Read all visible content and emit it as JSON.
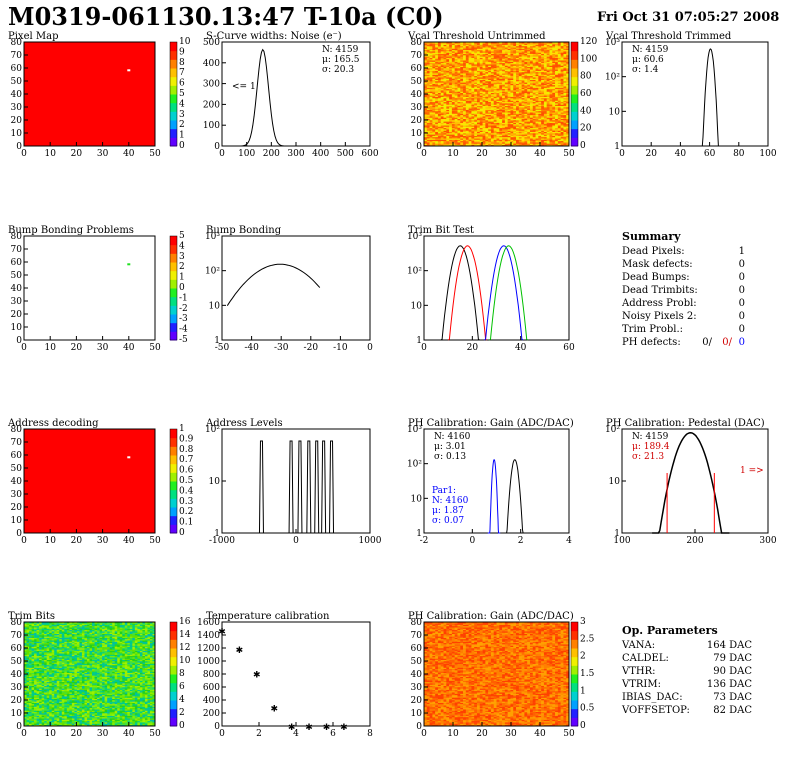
{
  "header": {
    "title": "M0319-061130.13:47 T-10a (C0)",
    "date": "Fri Oct 31 07:05:27 2008"
  },
  "panels": {
    "pixel_map": {
      "title": "Pixel Map",
      "xticks": [
        "0",
        "10",
        "20",
        "30",
        "40",
        "50"
      ],
      "yticks": [
        "0",
        "10",
        "20",
        "30",
        "40",
        "50",
        "60",
        "70",
        "80"
      ],
      "palette_ticks": [
        "0",
        "1",
        "2",
        "3",
        "4",
        "5",
        "6",
        "7",
        "8",
        "9",
        "10"
      ]
    },
    "scurve": {
      "title": "S-Curve widths: Noise (e⁻)",
      "stats": [
        "N: 4159",
        "μ: 165.5",
        "σ: 20.3"
      ],
      "note": "<= 1",
      "xticks": [
        "0",
        "100",
        "200",
        "300",
        "400",
        "500",
        "600"
      ],
      "yticks": [
        "0",
        "100",
        "200",
        "300",
        "400",
        "500"
      ]
    },
    "vcal_untrimmed": {
      "title": "Vcal Threshold Untrimmed",
      "xticks": [
        "0",
        "10",
        "20",
        "30",
        "40",
        "50"
      ],
      "yticks": [
        "0",
        "10",
        "20",
        "30",
        "40",
        "50",
        "60",
        "70",
        "80"
      ],
      "palette_ticks": [
        "0",
        "20",
        "40",
        "60",
        "80",
        "100",
        "120"
      ]
    },
    "vcal_trimmed": {
      "title": "Vcal Threshold Trimmed",
      "stats": [
        "N: 4159",
        "μ: 60.6",
        "σ:  1.4"
      ],
      "xticks": [
        "0",
        "20",
        "40",
        "60",
        "80",
        "100"
      ],
      "yticks": [
        "1",
        "10",
        "10²",
        "10³"
      ]
    },
    "bump_problems": {
      "title": "Bump Bonding Problems",
      "xticks": [
        "0",
        "10",
        "20",
        "30",
        "40",
        "50"
      ],
      "yticks": [
        "0",
        "10",
        "20",
        "30",
        "40",
        "50",
        "60",
        "70",
        "80"
      ],
      "palette_ticks": [
        "-5",
        "-4",
        "-3",
        "-2",
        "-1",
        "0",
        "1",
        "2",
        "3",
        "4",
        "5"
      ]
    },
    "bump_bonding": {
      "title": "Bump Bonding",
      "xticks": [
        "-50",
        "-40",
        "-30",
        "-20",
        "-10",
        "0"
      ],
      "yticks": [
        "1",
        "10",
        "10²",
        "10³"
      ]
    },
    "trim_bit": {
      "title": "Trim Bit Test",
      "xticks": [
        "0",
        "20",
        "40",
        "60"
      ],
      "yticks": [
        "1",
        "10",
        "10²",
        "10³"
      ]
    },
    "address_decoding": {
      "title": "Address decoding",
      "xticks": [
        "0",
        "10",
        "20",
        "30",
        "40",
        "50"
      ],
      "yticks": [
        "0",
        "10",
        "20",
        "30",
        "40",
        "50",
        "60",
        "70",
        "80"
      ],
      "palette_ticks": [
        "0",
        "0.1",
        "0.2",
        "0.3",
        "0.4",
        "0.5",
        "0.6",
        "0.7",
        "0.8",
        "0.9",
        "1"
      ]
    },
    "address_levels": {
      "title": "Address Levels",
      "xticks": [
        "-1000",
        "0",
        "1000"
      ],
      "yticks": [
        "1",
        "10",
        "10²"
      ]
    },
    "ph_gain": {
      "title": "PH Calibration: Gain (ADC/DAC)",
      "stats": [
        "N: 4160",
        "μ: 3.01",
        "σ: 0.13"
      ],
      "par1": [
        "Par1:",
        "N: 4160",
        "μ: 1.87",
        "σ: 0.07"
      ],
      "xticks": [
        "-2",
        "0",
        "2",
        "4"
      ],
      "yticks": [
        "1",
        "10",
        "10²",
        "10³"
      ]
    },
    "ph_pedestal": {
      "title": "PH Calibration: Pedestal (DAC)",
      "stats": [
        "N: 4159",
        "μ: 189.4",
        "σ: 21.3"
      ],
      "note": "1 =>",
      "xticks": [
        "100",
        "200",
        "300"
      ],
      "yticks": [
        "1",
        "10",
        "10²"
      ]
    },
    "trim_bits": {
      "title": "Trim Bits",
      "xticks": [
        "0",
        "10",
        "20",
        "30",
        "40",
        "50"
      ],
      "yticks": [
        "0",
        "10",
        "20",
        "30",
        "40",
        "50",
        "60",
        "70",
        "80"
      ],
      "palette_ticks": [
        "0",
        "2",
        "4",
        "6",
        "8",
        "10",
        "12",
        "14",
        "16"
      ]
    },
    "temp_cal": {
      "title": "Temperature calibration",
      "xticks": [
        "0",
        "2",
        "4",
        "6",
        "8"
      ],
      "yticks": [
        "0",
        "200",
        "400",
        "600",
        "800",
        "1000",
        "1200",
        "1400",
        "1600"
      ]
    },
    "ph_gain_map": {
      "title": "PH Calibration: Gain (ADC/DAC)",
      "xticks": [
        "0",
        "10",
        "20",
        "30",
        "40",
        "50"
      ],
      "yticks": [
        "0",
        "10",
        "20",
        "30",
        "40",
        "50",
        "60",
        "70",
        "80"
      ],
      "palette_ticks": [
        "0",
        "0.5",
        "1",
        "1.5",
        "2",
        "2.5",
        "3"
      ]
    }
  },
  "summary": {
    "title": "Summary",
    "rows": [
      {
        "label": "Dead Pixels:",
        "value": "1"
      },
      {
        "label": "Mask defects:",
        "value": "0"
      },
      {
        "label": "Dead Bumps:",
        "value": "0"
      },
      {
        "label": "Dead Trimbits:",
        "value": "0"
      },
      {
        "label": "Address Probl:",
        "value": "0"
      },
      {
        "label": "Noisy Pixels 2:",
        "value": "0"
      },
      {
        "label": "Trim Probl.:",
        "value": "0"
      }
    ],
    "ph_defects": {
      "label": "PH defects:",
      "v1": "0/",
      "v2": "0/",
      "v3": "0"
    }
  },
  "op_parameters": {
    "title": "Op. Parameters",
    "rows": [
      {
        "label": "VANA:",
        "value": "164 DAC"
      },
      {
        "label": "CALDEL:",
        "value": "79 DAC"
      },
      {
        "label": "VTHR:",
        "value": "90 DAC"
      },
      {
        "label": "VTRIM:",
        "value": "136 DAC"
      },
      {
        "label": "IBIAS_DAC:",
        "value": "73 DAC"
      },
      {
        "label": "VOFFSETOP:",
        "value": "82 DAC"
      }
    ]
  },
  "chart_data": [
    {
      "id": "temp_cal",
      "type": "scatter",
      "x": [
        0,
        1,
        2,
        3,
        4,
        5,
        6,
        7
      ],
      "y": [
        1560,
        1260,
        860,
        300,
        0,
        0,
        0,
        0
      ],
      "xlim": [
        0,
        8.5
      ],
      "ylim": [
        0,
        1700
      ]
    },
    {
      "id": "scurve",
      "type": "histogram",
      "x_peak": 165.5,
      "sigma": 20.3,
      "max": 510,
      "xlim": [
        0,
        600
      ],
      "ylim": [
        0,
        550
      ]
    },
    {
      "id": "vcal_trimmed",
      "type": "histogram",
      "x_peak": 60.6,
      "sigma": 1.4,
      "max": 1500,
      "log": true,
      "xlim": [
        0,
        100
      ]
    },
    {
      "id": "ph_pedestal",
      "type": "histogram",
      "x_peak": 189.4,
      "sigma": 21.3,
      "max": 320,
      "log": true,
      "xlim": [
        30,
        370
      ]
    }
  ],
  "colors": {
    "red": "#ff0000",
    "green": "#00c000",
    "blue": "#0000ff",
    "text_red": "#d00000"
  }
}
